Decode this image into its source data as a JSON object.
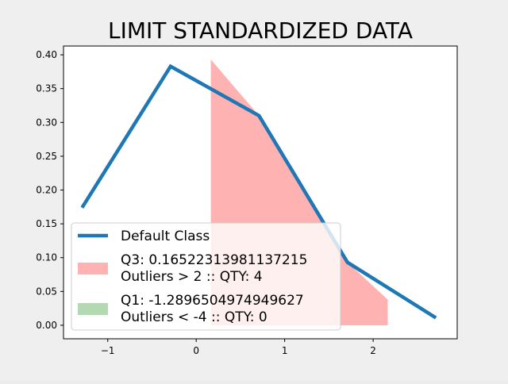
{
  "chart_data": {
    "type": "line",
    "title": "LIMIT STANDARDIZED DATA",
    "xlabel": "",
    "ylabel": "",
    "xlim": [
      -1.5,
      2.95
    ],
    "ylim": [
      -0.02,
      0.413
    ],
    "xticks": [
      -1,
      0,
      1,
      2
    ],
    "xtick_labels": [
      "−1",
      "0",
      "1",
      "2"
    ],
    "yticks": [
      0.0,
      0.05,
      0.1,
      0.15,
      0.2,
      0.25,
      0.3,
      0.35,
      0.4
    ],
    "ytick_labels": [
      "0.00",
      "0.05",
      "0.10",
      "0.15",
      "0.20",
      "0.25",
      "0.30",
      "0.35",
      "0.40"
    ],
    "grid": false,
    "legend_position": "lower-left",
    "series": [
      {
        "name": "Default Class",
        "kind": "line",
        "color": "#1f77b4",
        "x": [
          -1.29,
          -0.29,
          0.71,
          1.71,
          2.71
        ],
        "y": [
          0.174,
          0.383,
          0.31,
          0.093,
          0.011
        ]
      }
    ],
    "areas": [
      {
        "label_line1": "Q3: 0.16522313981137215",
        "label_line2": "Outliers > 2 :: QTY: 4",
        "color": "#ff7f7f",
        "opacity": 0.6,
        "x": [
          0.165,
          0.71,
          1.71,
          2.165,
          2.165,
          0.165
        ],
        "y": [
          0.393,
          0.31,
          0.093,
          0.038,
          0.0,
          0.0
        ]
      },
      {
        "label_line1": "Q1: -1.2896504974949627",
        "label_line2": "Outliers < -4 :: QTY: 0",
        "color": "#7fbf7f",
        "opacity": 0.6,
        "x": [],
        "y": []
      }
    ]
  }
}
